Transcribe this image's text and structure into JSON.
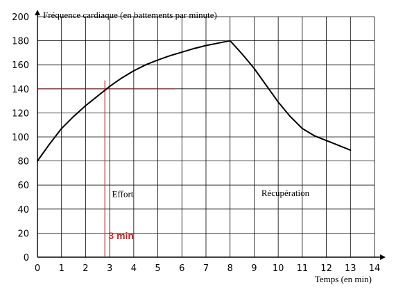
{
  "chart_data": {
    "type": "line",
    "title": "",
    "ylabel": "Fréquence cardiaque (en battements par minute)",
    "xlabel": "Temps (en min)",
    "xlim": [
      0,
      14
    ],
    "ylim": [
      0,
      200
    ],
    "x_ticks": [
      0,
      1,
      2,
      3,
      4,
      5,
      6,
      7,
      8,
      9,
      10,
      11,
      12,
      13,
      14
    ],
    "y_ticks": [
      0,
      20,
      40,
      60,
      80,
      100,
      120,
      140,
      160,
      180,
      200
    ],
    "grid": true,
    "series": [
      {
        "color": "#000000",
        "x": [
          0,
          0.5,
          1,
          1.5,
          2,
          2.5,
          3,
          3.5,
          4,
          4.5,
          5,
          5.5,
          6,
          6.5,
          7,
          7.5,
          8,
          8.5,
          9,
          9.5,
          10,
          10.5,
          11,
          11.5,
          12,
          12.5,
          13
        ],
        "y": [
          80,
          94,
          107,
          117,
          126,
          134,
          142,
          149,
          155,
          160,
          164,
          167.5,
          170.5,
          173.5,
          176,
          178,
          180,
          169,
          157,
          143,
          129,
          117,
          107,
          101,
          97,
          93,
          89
        ]
      }
    ],
    "reference_lines": [
      {
        "orientation": "horizontal",
        "value": 140,
        "x_end": 5.7,
        "color": "#8b1a1a"
      },
      {
        "orientation": "vertical",
        "value": 2.8,
        "y_end": 147,
        "color": "#cc3333"
      }
    ],
    "annotations": [
      {
        "text": "Effort",
        "x": 3.1,
        "y": 50
      },
      {
        "text": "Récupération",
        "x": 9.3,
        "y": 51
      },
      {
        "text": "3 min",
        "x": 2.95,
        "y": 15,
        "color": "#cc2222"
      }
    ]
  }
}
